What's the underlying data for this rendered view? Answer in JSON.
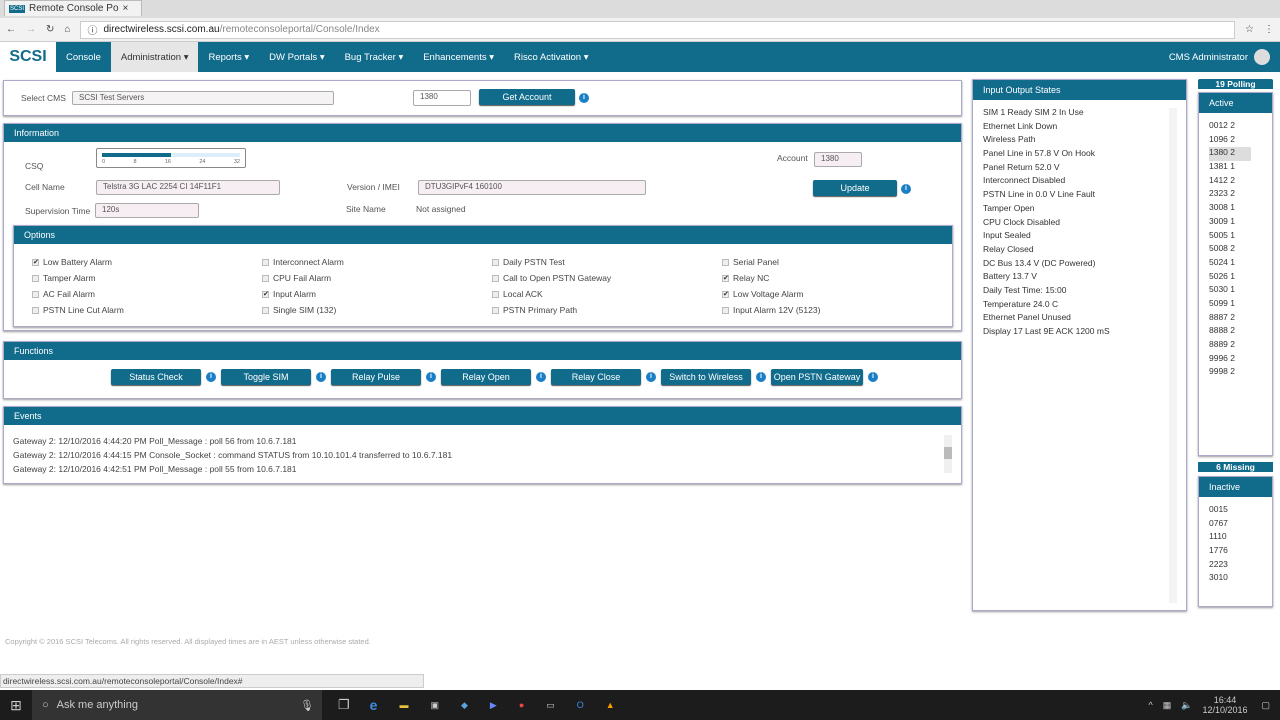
{
  "browser": {
    "tab_title": "Remote Console Po",
    "url_host": "directwireless.scsi.com.au",
    "url_path": "/remoteconsoleportal/Console/Index",
    "status_url": "directwireless.scsi.com.au/remoteconsoleportal/Console/Index#"
  },
  "nav": {
    "logo": "SCSI",
    "items": [
      "Console",
      "Administration ▾",
      "Reports ▾",
      "DW Portals ▾",
      "Bug Tracker ▾",
      "Enhancements ▾",
      "Risco Activation ▾"
    ],
    "user": "CMS Administrator"
  },
  "select": {
    "label": "Select CMS",
    "value": "SCSI Test Servers",
    "account": "1380",
    "button": "Get Account"
  },
  "information": {
    "title": "Information",
    "csq_label": "CSQ",
    "csq_value": 16,
    "csq_ticks": [
      "0",
      "8",
      "16",
      "24",
      "32"
    ],
    "cell_label": "Cell Name",
    "cell_value": "Telstra 3G LAC 2254 CI 14F11F1",
    "version_label": "Version / IMEI",
    "version_value": "DTU3GIPvF4 160100",
    "account_label": "Account",
    "account_value": "1380",
    "update": "Update",
    "supervision_label": "Supervision Time",
    "supervision_value": "120s",
    "site_label": "Site Name",
    "site_value": "Not assigned"
  },
  "options": {
    "title": "Options",
    "columns": [
      [
        {
          "label": "Low Battery Alarm",
          "checked": true
        },
        {
          "label": "Tamper Alarm",
          "checked": false
        },
        {
          "label": "AC Fail Alarm",
          "checked": false
        },
        {
          "label": "PSTN Line Cut Alarm",
          "checked": false
        }
      ],
      [
        {
          "label": "Interconnect Alarm",
          "checked": false
        },
        {
          "label": "CPU Fail Alarm",
          "checked": false
        },
        {
          "label": "Input Alarm",
          "checked": true
        },
        {
          "label": "Single SIM (132)",
          "checked": false
        }
      ],
      [
        {
          "label": "Daily PSTN Test",
          "checked": false
        },
        {
          "label": "Call to Open PSTN Gateway",
          "checked": false
        },
        {
          "label": "Local ACK",
          "checked": false
        },
        {
          "label": "PSTN Primary Path",
          "checked": false
        }
      ],
      [
        {
          "label": "Serial Panel",
          "checked": false
        },
        {
          "label": "Relay NC",
          "checked": true
        },
        {
          "label": "Low Voltage Alarm",
          "checked": true
        },
        {
          "label": "Input Alarm 12V (5123)",
          "checked": false
        }
      ]
    ]
  },
  "functions": {
    "title": "Functions",
    "buttons": [
      "Status Check",
      "Toggle SIM",
      "Relay Pulse",
      "Relay Open",
      "Relay Close",
      "Switch to Wireless",
      "Open PSTN Gateway"
    ]
  },
  "events": {
    "title": "Events",
    "lines": [
      "Gateway 2: 12/10/2016 4:44:20 PM Poll_Message : poll 56 from 10.6.7.181",
      "Gateway 2: 12/10/2016 4:44:15 PM Console_Socket : command STATUS from 10.10.101.4 transferred to 10.6.7.181",
      "Gateway 2: 12/10/2016 4:42:51 PM Poll_Message : poll 55 from 10.6.7.181"
    ]
  },
  "io_states": {
    "title": "Input Output States",
    "items": [
      "SIM 1 Ready SIM 2 In Use",
      "Ethernet Link Down",
      "Wireless Path",
      "Panel Line in 57.8 V On Hook",
      "Panel Return 52.0 V",
      "Interconnect Disabled",
      "PSTN Line in 0.0 V Line Fault",
      "Tamper Open",
      "CPU Clock Disabled",
      "Input Sealed",
      "Relay Closed",
      "DC Bus 13.4 V (DC Powered)",
      "Battery 13.7 V",
      "Daily Test Time: 15:00",
      "Temperature 24.0 C",
      "Ethernet Panel Unused",
      "Display 17 Last 9E ACK 1200 mS"
    ]
  },
  "polling": {
    "count_label": "19 Polling",
    "active_title": "Active",
    "active": [
      "0012 2",
      "1096 2",
      "1380 2",
      "1381 1",
      "1412 2",
      "2323 2",
      "3008 1",
      "3009 1",
      "5005 1",
      "5008 2",
      "5024 1",
      "5026 1",
      "5030 1",
      "5099 1",
      "8887 2",
      "8888 2",
      "8889 2",
      "9996 2",
      "9998 2"
    ],
    "selected": "1380 2",
    "missing_label": "6 Missing",
    "inactive_title": "Inactive",
    "inactive": [
      "0015",
      "0767",
      "1110",
      "1776",
      "2223",
      "3010"
    ]
  },
  "footer": {
    "copyright": "Copyright © 2016 SCSI Telecoms. All rights reserved. All displayed times are in AEST unless otherwise stated."
  },
  "taskbar": {
    "search": "Ask me anything",
    "time": "16:44",
    "date": "12/10/2016"
  },
  "colors": {
    "accent": "#116c8c",
    "info": "#1a7fc4"
  }
}
